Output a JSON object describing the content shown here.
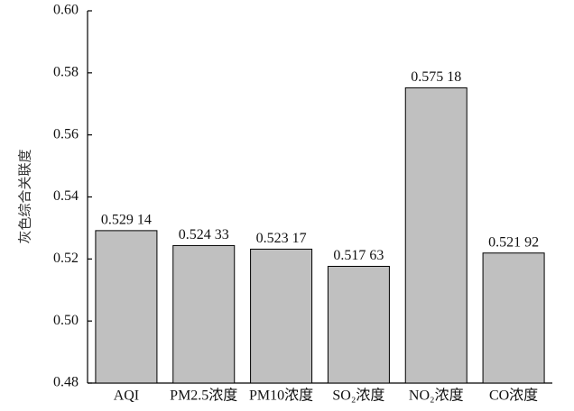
{
  "chart_data": {
    "type": "bar",
    "y_label": "灰色综合关联度",
    "categories": [
      "AQI",
      "PM2.5浓度",
      "PM10浓度",
      "SO₂浓度",
      "NO₂浓度",
      "CO浓度"
    ],
    "values": [
      0.52914,
      0.52433,
      0.52317,
      0.51763,
      0.57518,
      0.52192
    ],
    "value_labels": [
      "0.529 14",
      "0.524 33",
      "0.523 17",
      "0.517 63",
      "0.575 18",
      "0.521 92"
    ],
    "color": "#c0c0c0",
    "ylim": [
      0.48,
      0.6
    ],
    "yticks": [
      0.48,
      {
        "value": 0.5,
        "label": "0.50"
      },
      0.52,
      0.54,
      0.56,
      0.58,
      {
        "value": 0.6,
        "label": "0.60"
      }
    ],
    "grid": false
  }
}
